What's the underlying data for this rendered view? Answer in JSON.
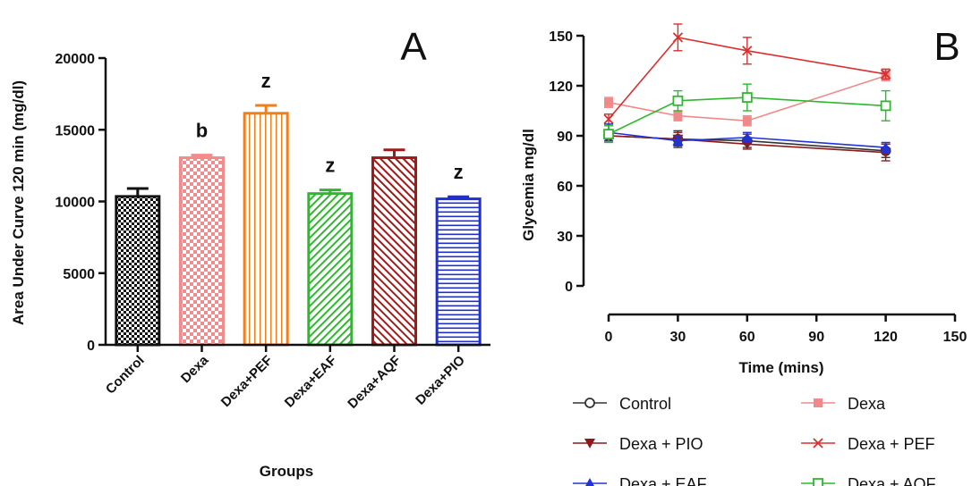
{
  "chart_data": [
    {
      "type": "bar",
      "panel_label": "A",
      "xlabel": "Groups",
      "ylabel": "Area Under Curve 120 min (mg/dl)",
      "ylim": [
        0,
        20000
      ],
      "yticks": [
        "0",
        "5000",
        "10000",
        "15000",
        "20000"
      ],
      "categories": [
        "Control",
        "Dexa",
        "Dexa+PEF",
        "Dexa+EAF",
        "Dexa+AQF",
        "Dexa+PIO"
      ],
      "values": [
        10350,
        13050,
        16150,
        10550,
        13050,
        10180
      ],
      "errors": [
        550,
        180,
        550,
        250,
        550,
        150
      ],
      "annotations": [
        "",
        "b",
        "z",
        "z",
        "",
        "z"
      ],
      "colors": [
        "#111111",
        "#f28b8b",
        "#f07f1a",
        "#2db82d",
        "#a01a1a",
        "#1f2fd6"
      ],
      "patterns": [
        "checker",
        "checker",
        "vlines",
        "diag",
        "diag",
        "hlines"
      ]
    },
    {
      "type": "line",
      "panel_label": "B",
      "xlabel": "Time (mins)",
      "ylabel": "Glycemia mg/dl",
      "xlim": [
        0,
        150
      ],
      "ylim": [
        0,
        150
      ],
      "xticks": [
        "0",
        "30",
        "60",
        "90",
        "120",
        "150"
      ],
      "yticks": [
        "0",
        "30",
        "60",
        "90",
        "120",
        "150"
      ],
      "x": [
        0,
        30,
        60,
        120
      ],
      "series": [
        {
          "name": "Control",
          "marker": "circle-open",
          "color": "#333333",
          "values": [
            90,
            88,
            87,
            81
          ],
          "errors": [
            3,
            5,
            4,
            4
          ]
        },
        {
          "name": "Dexa",
          "marker": "square",
          "color": "#f08a8a",
          "values": [
            110,
            102,
            99,
            126
          ],
          "errors": [
            3,
            3,
            3,
            3
          ]
        },
        {
          "name": "Dexa + PIO",
          "marker": "triangle-down",
          "color": "#8b1a1a",
          "values": [
            90,
            88,
            85,
            80
          ],
          "errors": [
            3,
            4,
            3,
            5
          ]
        },
        {
          "name": "Dexa + PEF",
          "marker": "x",
          "color": "#d93030",
          "values": [
            100,
            149,
            141,
            127
          ],
          "errors": [
            3,
            8,
            8,
            3
          ]
        },
        {
          "name": "Dexa + EAF",
          "marker": "triangle-up",
          "color": "#2233d6",
          "values": [
            92,
            87,
            89,
            83
          ],
          "errors": [
            5,
            3,
            3,
            3
          ]
        },
        {
          "name": "Dexa + AQF",
          "marker": "square-open",
          "color": "#2db82d",
          "values": [
            91,
            111,
            113,
            108
          ],
          "errors": [
            5,
            6,
            8,
            9
          ]
        }
      ]
    }
  ]
}
